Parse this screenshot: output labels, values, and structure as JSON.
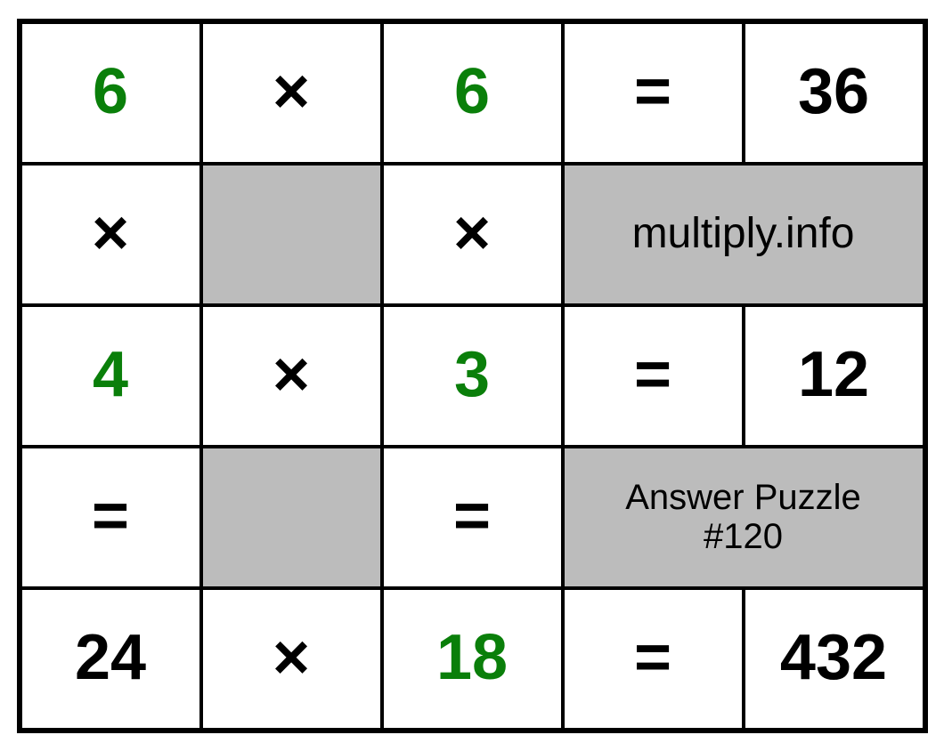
{
  "grid": {
    "type": "table",
    "rows": 5,
    "cols": 5,
    "border_color": "#000000",
    "background_color": "#ffffff",
    "grey_fill": "#bcbcbc",
    "number_color": "#000000",
    "answer_color": "#0a7f0a",
    "number_fontsize": 72,
    "label_fontsize": 48,
    "sublabel_fontsize": 40,
    "number_fontweight": 700,
    "label_fontweight": 400
  },
  "cells": {
    "r1c1": "6",
    "r1c2": "×",
    "r1c3": "6",
    "r1c4": "=",
    "r1c5": "36",
    "r2c1": "×",
    "r2c3": "×",
    "r2_label": "multiply.info",
    "r3c1": "4",
    "r3c2": "×",
    "r3c3": "3",
    "r3c4": "=",
    "r3c5": "12",
    "r4c1": "=",
    "r4c3": "=",
    "r4_label_line1": "Answer Puzzle",
    "r4_label_line2": "#120",
    "r5c1": "24",
    "r5c2": "×",
    "r5c3": "18",
    "r5c4": "=",
    "r5c5": "432"
  }
}
